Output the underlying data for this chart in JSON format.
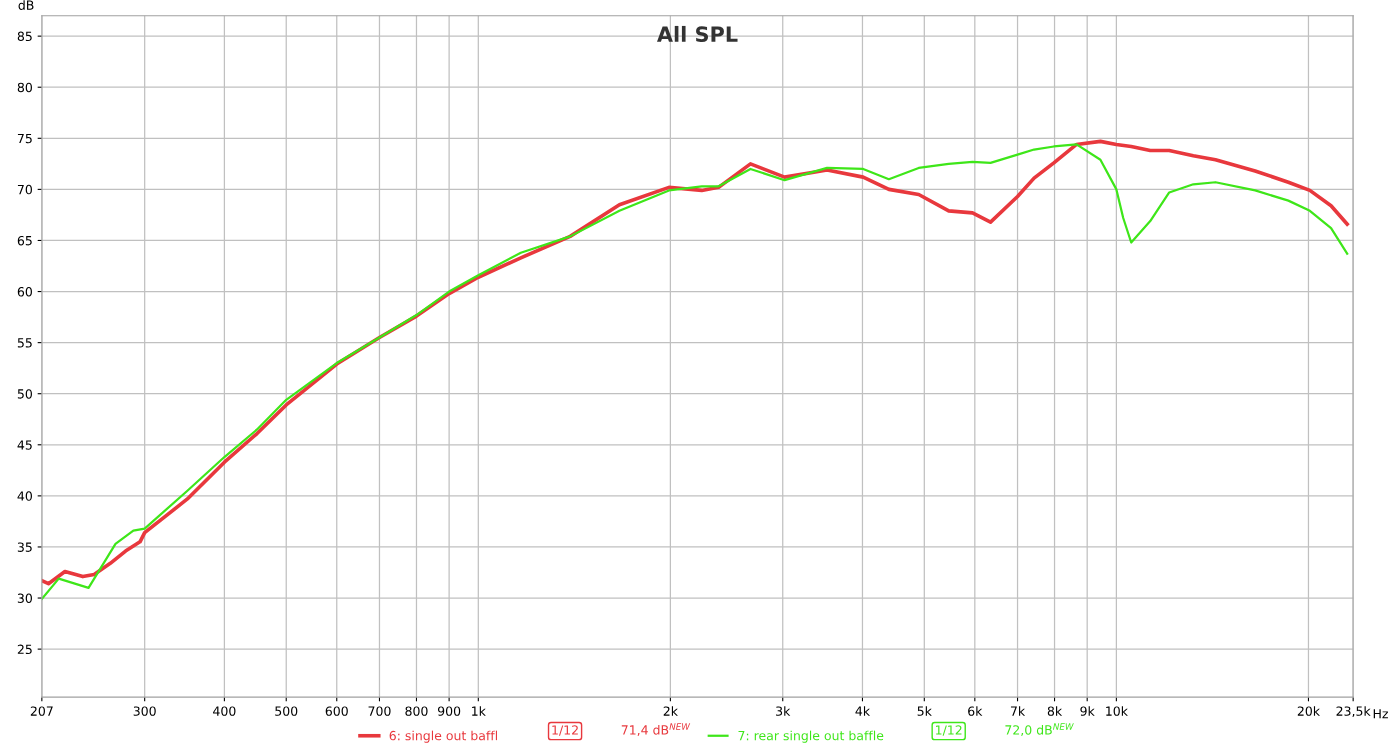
{
  "chart_data": {
    "type": "line",
    "title": "All SPL",
    "ylabel": "dB",
    "log": "x",
    "grid": true,
    "legend": "bottom",
    "marker": "none",
    "line_style": "solid",
    "xlim": [
      207,
      23500
    ],
    "ylim": [
      20.3,
      87
    ],
    "xticks": [
      207,
      300,
      400,
      500,
      600,
      700,
      800,
      900,
      {
        "value": 1000,
        "label": "1k"
      },
      {
        "value": 2000,
        "label": "2k"
      },
      {
        "value": 3000,
        "label": "3k"
      },
      {
        "value": 4000,
        "label": "4k"
      },
      {
        "value": 5000,
        "label": "5k"
      },
      {
        "value": 6000,
        "label": "6k"
      },
      {
        "value": 7000,
        "label": "7k"
      },
      {
        "value": 8000,
        "label": "8k"
      },
      {
        "value": 9000,
        "label": "9k"
      },
      {
        "value": 10000,
        "label": "10k"
      },
      {
        "value": 20000,
        "label": "20k"
      },
      {
        "value": 23500,
        "label": "23,5k"
      }
    ],
    "xlabel": "Hz",
    "yticks": [
      25,
      30,
      35,
      40,
      45,
      50,
      55,
      60,
      65,
      70,
      75,
      80,
      85
    ],
    "annotations": [
      "1/12",
      "71,4 dB$^{NEW}$",
      "1/12",
      "72,0 dB$^{NEW}$"
    ],
    "series": [
      {
        "name": "6: single out baffl",
        "color": "#e8383d",
        "x": [
          207,
          212,
          225,
          240,
          250,
          265,
          280,
          295,
          300,
          350,
          400,
          450,
          500,
          600,
          700,
          800,
          900,
          1000,
          1166,
          1393,
          1664,
          1990,
          2240,
          2380,
          2670,
          3020,
          3520,
          4010,
          4400,
          4900,
          5460,
          5950,
          6350,
          7000,
          7430,
          7980,
          8660,
          9440,
          10000,
          10550,
          11300,
          12100,
          13200,
          14300,
          16500,
          18600,
          20100,
          21700,
          23000
        ],
        "values": [
          31.7,
          31.4,
          32.6,
          32.1,
          32.3,
          33.4,
          34.6,
          35.5,
          36.4,
          39.7,
          43.3,
          46.1,
          48.9,
          52.9,
          55.5,
          57.6,
          59.8,
          61.4,
          63.3,
          65.4,
          68.5,
          70.2,
          69.9,
          70.2,
          72.5,
          71.2,
          71.9,
          71.2,
          70.0,
          69.5,
          67.9,
          67.7,
          66.8,
          69.3,
          71.1,
          72.6,
          74.4,
          74.7,
          74.4,
          74.2,
          73.8,
          73.8,
          73.3,
          72.9,
          71.8,
          70.7,
          69.9,
          68.4,
          66.6
        ]
      },
      {
        "name": "7: rear single out baffle",
        "color": "#3ee619",
        "x": [
          207,
          220,
          245,
          270,
          288,
          300,
          350,
          400,
          450,
          500,
          600,
          700,
          800,
          900,
          1000,
          1166,
          1393,
          1664,
          1990,
          2240,
          2380,
          2670,
          3020,
          3520,
          4010,
          4400,
          4900,
          5460,
          5950,
          6350,
          7000,
          7430,
          7980,
          8660,
          9440,
          10000,
          10250,
          10550,
          11300,
          12100,
          13200,
          14300,
          16500,
          18600,
          20100,
          21700,
          23000
        ],
        "values": [
          29.9,
          31.9,
          31.0,
          35.3,
          36.6,
          36.8,
          40.5,
          43.8,
          46.5,
          49.4,
          53.0,
          55.5,
          57.7,
          60.0,
          61.6,
          63.8,
          65.4,
          67.9,
          69.9,
          70.3,
          70.3,
          72.0,
          70.9,
          72.1,
          72.0,
          71.0,
          72.1,
          72.5,
          72.7,
          72.6,
          73.4,
          73.9,
          74.2,
          74.4,
          72.9,
          70.0,
          67.2,
          64.8,
          66.9,
          69.7,
          70.5,
          70.7,
          69.9,
          68.9,
          67.9,
          66.2,
          63.7
        ]
      }
    ]
  }
}
